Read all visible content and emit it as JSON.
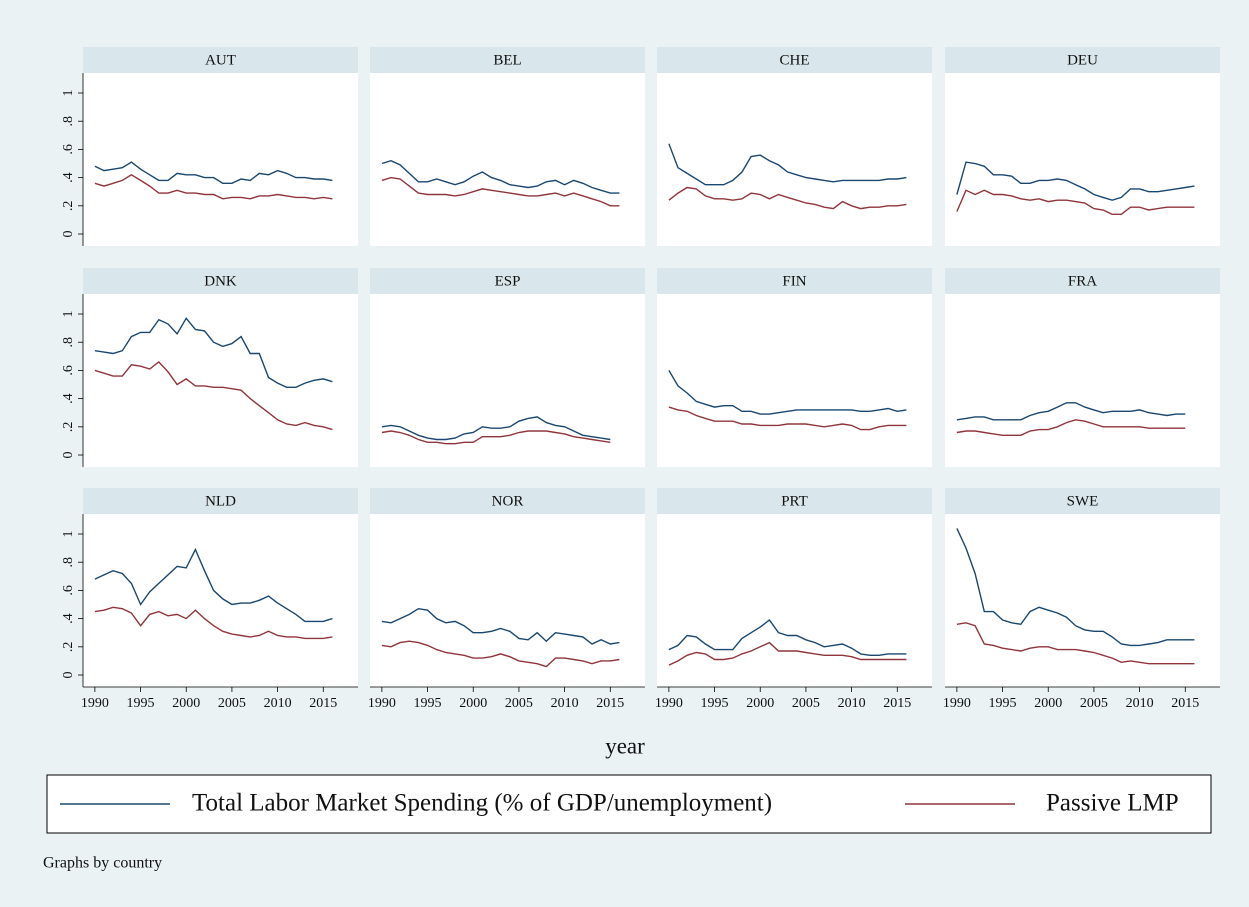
{
  "chart_data": {
    "type": "line",
    "x": [
      1990,
      1991,
      1992,
      1993,
      1994,
      1995,
      1996,
      1997,
      1998,
      1999,
      2000,
      2001,
      2002,
      2003,
      2004,
      2005,
      2006,
      2007,
      2008,
      2009,
      2010,
      2011,
      2012,
      2013,
      2014,
      2015,
      2016
    ],
    "xlim": [
      1988.7,
      2018.8
    ],
    "xticks": [
      1990,
      1995,
      2000,
      2005,
      2010,
      2015
    ],
    "ylim": [
      -0.085,
      1.142
    ],
    "yticks": [
      {
        "value": 0,
        "label": "0"
      },
      {
        "value": 0.2,
        "label": ".2"
      },
      {
        "value": 0.4,
        "label": ".4"
      },
      {
        "value": 0.6,
        "label": ".6"
      },
      {
        "value": 0.8,
        "label": ".8"
      },
      {
        "value": 1,
        "label": "1"
      }
    ],
    "grid": false,
    "xlabel": "year",
    "note": "Graphs by country",
    "legend": "bottom",
    "series": [
      {
        "name": "Total Labor Market Spending (% of GDP/unemployment)",
        "color": "#1a476f"
      },
      {
        "name": "Passive LMP",
        "color": "#90353b"
      }
    ],
    "panels": [
      {
        "title": "AUT",
        "series": [
          {
            "values": [
              0.48,
              0.45,
              0.46,
              0.47,
              0.51,
              0.46,
              0.42,
              0.38,
              0.38,
              0.43,
              0.42,
              0.42,
              0.4,
              0.4,
              0.36,
              0.36,
              0.39,
              0.38,
              0.43,
              0.42,
              0.45,
              0.43,
              0.4,
              0.4,
              0.39,
              0.39,
              0.38
            ]
          },
          {
            "values": [
              0.36,
              0.34,
              0.36,
              0.38,
              0.42,
              0.38,
              0.34,
              0.29,
              0.29,
              0.31,
              0.29,
              0.29,
              0.28,
              0.28,
              0.25,
              0.26,
              0.26,
              0.25,
              0.27,
              0.27,
              0.28,
              0.27,
              0.26,
              0.26,
              0.25,
              0.26,
              0.25
            ]
          }
        ]
      },
      {
        "title": "BEL",
        "series": [
          {
            "values": [
              0.5,
              0.52,
              0.49,
              0.43,
              0.37,
              0.37,
              0.39,
              0.37,
              0.35,
              0.37,
              0.41,
              0.44,
              0.4,
              0.38,
              0.35,
              0.34,
              0.33,
              0.34,
              0.37,
              0.38,
              0.35,
              0.38,
              0.36,
              0.33,
              0.31,
              0.29,
              0.29
            ]
          },
          {
            "values": [
              0.38,
              0.4,
              0.39,
              0.34,
              0.29,
              0.28,
              0.28,
              0.28,
              0.27,
              0.28,
              0.3,
              0.32,
              0.31,
              0.3,
              0.29,
              0.28,
              0.27,
              0.27,
              0.28,
              0.29,
              0.27,
              0.29,
              0.27,
              0.25,
              0.23,
              0.2,
              0.2
            ]
          }
        ]
      },
      {
        "title": "CHE",
        "series": [
          {
            "values": [
              0.64,
              0.47,
              0.43,
              0.39,
              0.35,
              0.35,
              0.35,
              0.38,
              0.44,
              0.55,
              0.56,
              0.52,
              0.49,
              0.44,
              0.42,
              0.4,
              0.39,
              0.38,
              0.37,
              0.38,
              0.38,
              0.38,
              0.38,
              0.38,
              0.39,
              0.39,
              0.4
            ]
          },
          {
            "values": [
              0.24,
              0.29,
              0.33,
              0.32,
              0.27,
              0.25,
              0.25,
              0.24,
              0.25,
              0.29,
              0.28,
              0.25,
              0.28,
              0.26,
              0.24,
              0.22,
              0.21,
              0.19,
              0.18,
              0.23,
              0.2,
              0.18,
              0.19,
              0.19,
              0.2,
              0.2,
              0.21
            ]
          }
        ]
      },
      {
        "title": "DEU",
        "series": [
          {
            "values": [
              0.28,
              0.51,
              0.5,
              0.48,
              0.42,
              0.42,
              0.41,
              0.36,
              0.36,
              0.38,
              0.38,
              0.39,
              0.38,
              0.35,
              0.32,
              0.28,
              0.26,
              0.24,
              0.26,
              0.32,
              0.32,
              0.3,
              0.3,
              0.31,
              0.32,
              0.33,
              0.34
            ]
          },
          {
            "values": [
              0.16,
              0.31,
              0.28,
              0.31,
              0.28,
              0.28,
              0.27,
              0.25,
              0.24,
              0.25,
              0.23,
              0.24,
              0.24,
              0.23,
              0.22,
              0.18,
              0.17,
              0.14,
              0.14,
              0.19,
              0.19,
              0.17,
              0.18,
              0.19,
              0.19,
              0.19,
              0.19
            ]
          }
        ]
      },
      {
        "title": "DNK",
        "series": [
          {
            "values": [
              0.74,
              0.73,
              0.72,
              0.74,
              0.84,
              0.87,
              0.87,
              0.96,
              0.93,
              0.86,
              0.97,
              0.89,
              0.88,
              0.8,
              0.77,
              0.79,
              0.84,
              0.72,
              0.72,
              0.55,
              0.51,
              0.48,
              0.48,
              0.51,
              0.53,
              0.54,
              0.52
            ]
          },
          {
            "values": [
              0.6,
              0.58,
              0.56,
              0.56,
              0.64,
              0.63,
              0.61,
              0.66,
              0.59,
              0.5,
              0.54,
              0.49,
              0.49,
              0.48,
              0.48,
              0.47,
              0.46,
              0.4,
              0.35,
              0.3,
              0.25,
              0.22,
              0.21,
              0.23,
              0.21,
              0.2,
              0.18
            ]
          }
        ]
      },
      {
        "title": "ESP",
        "series": [
          {
            "values": [
              0.2,
              0.21,
              0.2,
              0.17,
              0.14,
              0.12,
              0.11,
              0.11,
              0.12,
              0.15,
              0.16,
              0.2,
              0.19,
              0.19,
              0.2,
              0.24,
              0.26,
              0.27,
              0.23,
              0.21,
              0.2,
              0.17,
              0.14,
              0.13,
              0.12,
              0.11,
              null
            ]
          },
          {
            "values": [
              0.16,
              0.17,
              0.16,
              0.14,
              0.11,
              0.09,
              0.09,
              0.08,
              0.08,
              0.09,
              0.09,
              0.13,
              0.13,
              0.13,
              0.14,
              0.16,
              0.17,
              0.17,
              0.17,
              0.16,
              0.15,
              0.13,
              0.12,
              0.11,
              0.1,
              0.09,
              null
            ]
          }
        ]
      },
      {
        "title": "FIN",
        "series": [
          {
            "values": [
              0.6,
              0.49,
              0.44,
              0.38,
              0.36,
              0.34,
              0.35,
              0.35,
              0.31,
              0.31,
              0.29,
              0.29,
              0.3,
              0.31,
              0.32,
              0.32,
              0.32,
              0.32,
              0.32,
              0.32,
              0.32,
              0.31,
              0.31,
              0.32,
              0.33,
              0.31,
              0.32
            ]
          },
          {
            "values": [
              0.34,
              0.32,
              0.31,
              0.28,
              0.26,
              0.24,
              0.24,
              0.24,
              0.22,
              0.22,
              0.21,
              0.21,
              0.21,
              0.22,
              0.22,
              0.22,
              0.21,
              0.2,
              0.21,
              0.22,
              0.21,
              0.18,
              0.18,
              0.2,
              0.21,
              0.21,
              0.21
            ]
          }
        ]
      },
      {
        "title": "FRA",
        "series": [
          {
            "values": [
              0.25,
              0.26,
              0.27,
              0.27,
              0.25,
              0.25,
              0.25,
              0.25,
              0.28,
              0.3,
              0.31,
              0.34,
              0.37,
              0.37,
              0.34,
              0.32,
              0.3,
              0.31,
              0.31,
              0.31,
              0.32,
              0.3,
              0.29,
              0.28,
              0.29,
              0.29,
              null
            ]
          },
          {
            "values": [
              0.16,
              0.17,
              0.17,
              0.16,
              0.15,
              0.14,
              0.14,
              0.14,
              0.17,
              0.18,
              0.18,
              0.2,
              0.23,
              0.25,
              0.24,
              0.22,
              0.2,
              0.2,
              0.2,
              0.2,
              0.2,
              0.19,
              0.19,
              0.19,
              0.19,
              0.19,
              null
            ]
          }
        ]
      },
      {
        "title": "NLD",
        "series": [
          {
            "values": [
              0.68,
              0.71,
              0.74,
              0.72,
              0.65,
              0.5,
              0.59,
              0.65,
              0.71,
              0.77,
              0.76,
              0.89,
              0.74,
              0.6,
              0.54,
              0.5,
              0.51,
              0.51,
              0.53,
              0.56,
              0.51,
              0.47,
              0.43,
              0.38,
              0.38,
              0.38,
              0.4
            ]
          },
          {
            "values": [
              0.45,
              0.46,
              0.48,
              0.47,
              0.44,
              0.35,
              0.43,
              0.45,
              0.42,
              0.43,
              0.4,
              0.46,
              0.4,
              0.35,
              0.31,
              0.29,
              0.28,
              0.27,
              0.28,
              0.31,
              0.28,
              0.27,
              0.27,
              0.26,
              0.26,
              0.26,
              0.27
            ]
          }
        ]
      },
      {
        "title": "NOR",
        "series": [
          {
            "values": [
              0.38,
              0.37,
              0.4,
              0.43,
              0.47,
              0.46,
              0.4,
              0.37,
              0.38,
              0.35,
              0.3,
              0.3,
              0.31,
              0.33,
              0.31,
              0.26,
              0.25,
              0.3,
              0.24,
              0.3,
              0.29,
              0.28,
              0.27,
              0.22,
              0.25,
              0.22,
              0.23
            ]
          },
          {
            "values": [
              0.21,
              0.2,
              0.23,
              0.24,
              0.23,
              0.21,
              0.18,
              0.16,
              0.15,
              0.14,
              0.12,
              0.12,
              0.13,
              0.15,
              0.13,
              0.1,
              0.09,
              0.08,
              0.06,
              0.12,
              0.12,
              0.11,
              0.1,
              0.08,
              0.1,
              0.1,
              0.11
            ]
          }
        ]
      },
      {
        "title": "PRT",
        "series": [
          {
            "values": [
              0.18,
              0.21,
              0.28,
              0.27,
              0.22,
              0.18,
              0.18,
              0.18,
              0.26,
              0.3,
              0.34,
              0.39,
              0.3,
              0.28,
              0.28,
              0.25,
              0.23,
              0.2,
              0.21,
              0.22,
              0.19,
              0.15,
              0.14,
              0.14,
              0.15,
              0.15,
              0.15
            ]
          },
          {
            "values": [
              0.07,
              0.1,
              0.14,
              0.16,
              0.15,
              0.11,
              0.11,
              0.12,
              0.15,
              0.17,
              0.2,
              0.23,
              0.17,
              0.17,
              0.17,
              0.16,
              0.15,
              0.14,
              0.14,
              0.14,
              0.13,
              0.11,
              0.11,
              0.11,
              0.11,
              0.11,
              0.11
            ]
          }
        ]
      },
      {
        "title": "SWE",
        "series": [
          {
            "values": [
              1.04,
              0.9,
              0.72,
              0.45,
              0.45,
              0.39,
              0.37,
              0.36,
              0.45,
              0.48,
              0.46,
              0.44,
              0.41,
              0.35,
              0.32,
              0.31,
              0.31,
              0.27,
              0.22,
              0.21,
              0.21,
              0.22,
              0.23,
              0.25,
              0.25,
              0.25,
              0.25
            ]
          },
          {
            "values": [
              0.36,
              0.37,
              0.35,
              0.22,
              0.21,
              0.19,
              0.18,
              0.17,
              0.19,
              0.2,
              0.2,
              0.18,
              0.18,
              0.18,
              0.17,
              0.16,
              0.14,
              0.12,
              0.09,
              0.1,
              0.09,
              0.08,
              0.08,
              0.08,
              0.08,
              0.08,
              0.08
            ]
          }
        ]
      }
    ]
  }
}
